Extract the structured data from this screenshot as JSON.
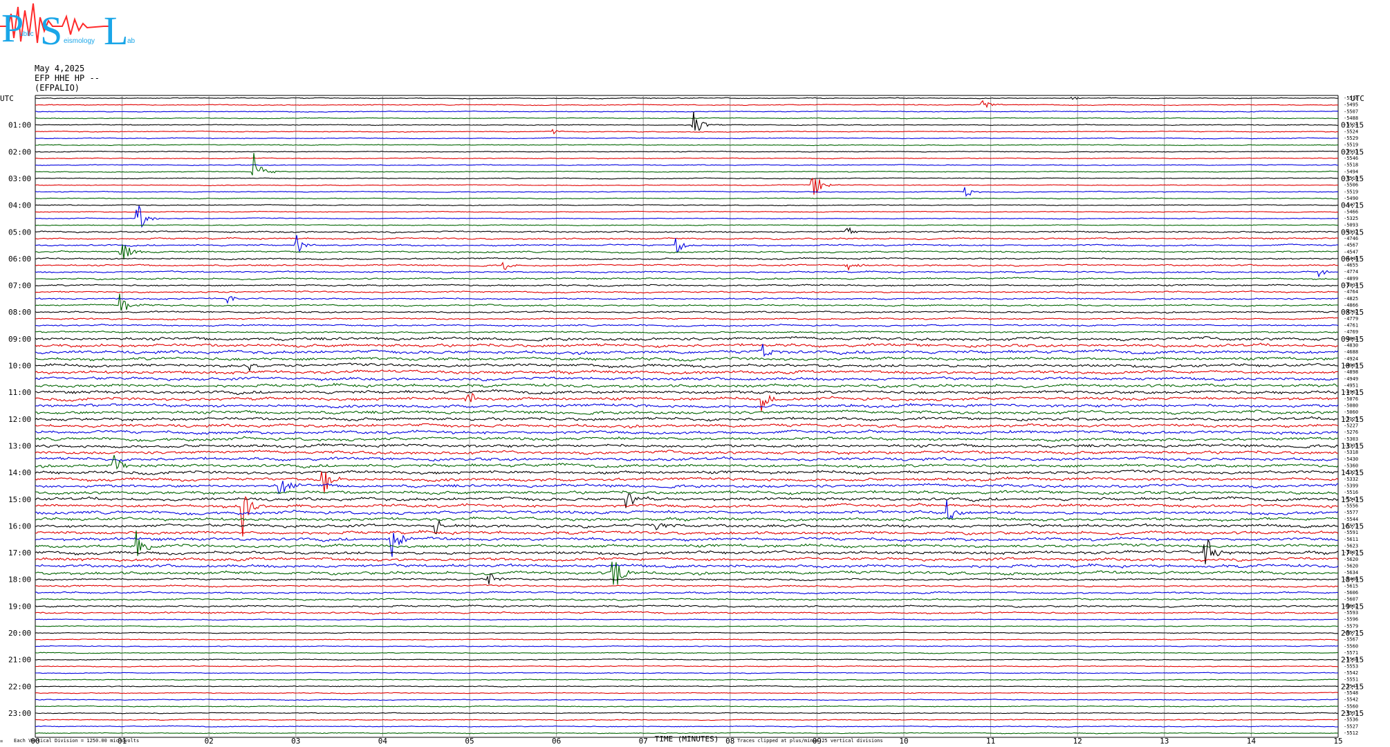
{
  "logo": {
    "big_letters": [
      "P",
      "S",
      "L"
    ],
    "small_text": [
      "ublic",
      "eismology",
      "ab"
    ],
    "colors": {
      "letters": "#1aa6e8",
      "wave": "#ff2a2a"
    }
  },
  "header": {
    "date": "May 4,2025",
    "station": "EFP HHE HP --",
    "name": "(EFPALIO)"
  },
  "chart_data": {
    "type": "line",
    "title": "",
    "xlabel": "TIME (MINUTES)",
    "xlim": [
      0,
      15
    ],
    "x_ticks": [
      "00",
      "01",
      "02",
      "03",
      "04",
      "05",
      "06",
      "07",
      "08",
      "09",
      "10",
      "11",
      "12",
      "13",
      "14",
      "15"
    ],
    "left_axis_title": "UTC",
    "right_axis_title": "UTC",
    "left_hour_labels": [
      "01:00",
      "02:00",
      "03:00",
      "04:00",
      "05:00",
      "06:00",
      "07:00",
      "08:00",
      "09:00",
      "10:00",
      "11:00",
      "12:00",
      "13:00",
      "14:00",
      "15:00",
      "16:00",
      "17:00",
      "18:00",
      "19:00",
      "20:00",
      "21:00",
      "22:00",
      "23:00"
    ],
    "right_hour_labels": [
      "01:15",
      "02:15",
      "03:15",
      "04:15",
      "05:15",
      "06:15",
      "07:15",
      "08:15",
      "09:15",
      "10:15",
      "11:15",
      "12:15",
      "13:15",
      "14:15",
      "15:15",
      "16:15",
      "17:15",
      "18:15",
      "19:15",
      "20:15",
      "21:15",
      "22:15",
      "23:15"
    ],
    "trace_minutes": 15,
    "trace_colors": [
      "#000000",
      "#e00000",
      "#0000e0",
      "#006400"
    ],
    "trace_offsets": [
      -5510,
      -5495,
      -5507,
      -5488,
      -5524,
      -5524,
      -5529,
      -5519,
      -5533,
      -5546,
      -5518,
      -5494,
      -5510,
      -5506,
      -5519,
      -5490,
      -5477,
      -5466,
      -5325,
      -5093,
      -4932,
      -4746,
      -4567,
      -4547,
      -4446,
      -4655,
      -4774,
      -4899,
      -5034,
      -4764,
      -4825,
      -4866,
      -4702,
      -4779,
      -4761,
      -4769,
      -4884,
      -4830,
      -4688,
      -4924,
      -4985,
      -4898,
      -4949,
      -4951,
      -4963,
      -5076,
      -5080,
      -5060,
      -5125,
      -5227,
      -5276,
      -5303,
      -5335,
      -5318,
      -5430,
      -5360,
      -5325,
      -5332,
      -5399,
      -5516,
      -5543,
      -5556,
      -5577,
      -5544,
      -5573,
      -5591,
      -5611,
      -5623,
      -5607,
      -5620,
      -5620,
      -5634,
      -5486,
      -5615,
      -5606,
      -5607,
      -5602,
      -5593,
      -5596,
      -5579,
      -5577,
      -5567,
      -5560,
      -5571,
      -5568,
      -5553,
      -5542,
      -5551,
      -5544,
      -5548,
      -5542,
      -5560,
      -5531,
      -5536,
      -5527,
      -5512
    ],
    "events": [
      {
        "trace": 1,
        "minute": 10.9,
        "amp": 0.9
      },
      {
        "trace": 0,
        "minute": 11.9,
        "amp": 0.4
      },
      {
        "trace": 4,
        "minute": 7.57,
        "amp": 2.5
      },
      {
        "trace": 5,
        "minute": 5.95,
        "amp": 0.6
      },
      {
        "trace": 11,
        "minute": 2.5,
        "amp": 4.5
      },
      {
        "trace": 13,
        "minute": 8.93,
        "amp": 3.5
      },
      {
        "trace": 14,
        "minute": 10.7,
        "amp": 1.2
      },
      {
        "trace": 18,
        "minute": 1.17,
        "amp": 3.0
      },
      {
        "trace": 20,
        "minute": 9.33,
        "amp": 0.9
      },
      {
        "trace": 22,
        "minute": 2.97,
        "amp": 3.0
      },
      {
        "trace": 22,
        "minute": 7.37,
        "amp": 2.0
      },
      {
        "trace": 23,
        "minute": 0.97,
        "amp": 3.2
      },
      {
        "trace": 25,
        "minute": 5.37,
        "amp": 1.2
      },
      {
        "trace": 25,
        "minute": 9.33,
        "amp": 1.2
      },
      {
        "trace": 26,
        "minute": 14.77,
        "amp": 1.2
      },
      {
        "trace": 30,
        "minute": 2.2,
        "amp": 1.0
      },
      {
        "trace": 31,
        "minute": 0.97,
        "amp": 2.5
      },
      {
        "trace": 38,
        "minute": 8.35,
        "amp": 2.5
      },
      {
        "trace": 40,
        "minute": 2.4,
        "amp": 2.0
      },
      {
        "trace": 44,
        "minute": 8.1,
        "amp": 0.7
      },
      {
        "trace": 45,
        "minute": 4.95,
        "amp": 2.2
      },
      {
        "trace": 45,
        "minute": 8.35,
        "amp": 2.2
      },
      {
        "trace": 55,
        "minute": 0.9,
        "amp": 2.0
      },
      {
        "trace": 58,
        "minute": 2.8,
        "amp": 3.0
      },
      {
        "trace": 57,
        "minute": 3.3,
        "amp": 3.5
      },
      {
        "trace": 61,
        "minute": 2.38,
        "amp": 6.0
      },
      {
        "trace": 60,
        "minute": 6.8,
        "amp": 2.0
      },
      {
        "trace": 62,
        "minute": 10.5,
        "amp": 2.2
      },
      {
        "trace": 64,
        "minute": 4.6,
        "amp": 1.5
      },
      {
        "trace": 64,
        "minute": 7.13,
        "amp": 1.5
      },
      {
        "trace": 66,
        "minute": 4.1,
        "amp": 4.0
      },
      {
        "trace": 67,
        "minute": 1.17,
        "amp": 2.5
      },
      {
        "trace": 68,
        "minute": 13.45,
        "amp": 4.0
      },
      {
        "trace": 71,
        "minute": 6.65,
        "amp": 4.5
      },
      {
        "trace": 72,
        "minute": 5.2,
        "amp": 1.5
      }
    ],
    "footer_left": "Each Vertical Division = 1250.00 microvolts",
    "footer_right": "Traces clipped at plus/minus 25 vertical divisions",
    "footer_mark": "="
  }
}
